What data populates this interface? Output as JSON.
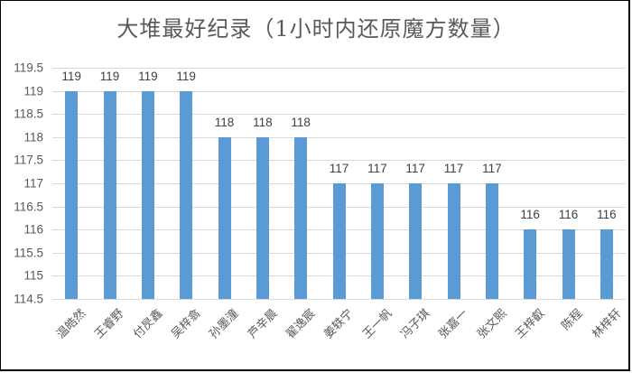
{
  "chart_data": {
    "type": "bar",
    "title": "大堆最好纪录（1小时内还原魔方数量）",
    "xlabel": "",
    "ylabel": "",
    "ylim": [
      114.5,
      119.5
    ],
    "y_ticks": [
      "119.5",
      "119",
      "118.5",
      "118",
      "117.5",
      "117",
      "116.5",
      "116",
      "115.5",
      "115",
      "114.5"
    ],
    "grid": true,
    "legend": "none",
    "data_labels": true,
    "color": "#5b9bd5",
    "categories": [
      "温皓然",
      "王睿野",
      "付昃鑫",
      "吴梓翕",
      "孙墨潼",
      "芦辛晨",
      "翟逸宸",
      "姜轶宁",
      "王一帆",
      "冯子琪",
      "张嘉一",
      "张文熙",
      "王梓叡",
      "陈程",
      "林梓轩"
    ],
    "values": [
      119,
      119,
      119,
      119,
      118,
      118,
      118,
      117,
      117,
      117,
      117,
      117,
      116,
      116,
      116
    ]
  }
}
